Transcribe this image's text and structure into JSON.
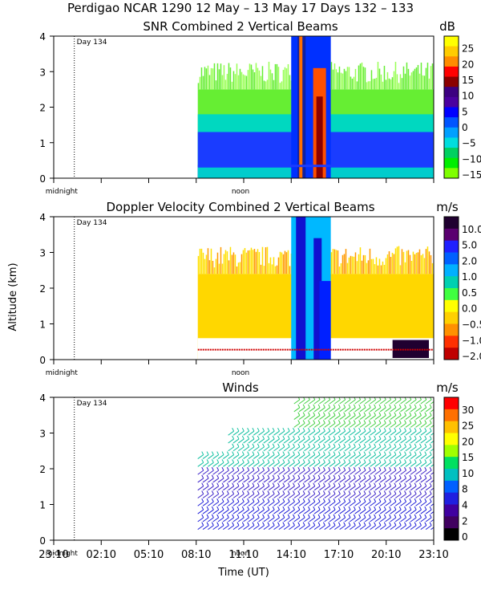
{
  "chart_data": {
    "type": "heatmap",
    "title": "Perdigao NCAR 1290  12 May – 13 May 17 Days 132 – 133",
    "xlabel": "Time (UT)",
    "ylabel": "Altitude (km)",
    "xlim_hours": [
      0,
      24
    ],
    "ylim_km": [
      0,
      4
    ],
    "x_ticks": [
      "23:10",
      "02:10",
      "05:10",
      "08:10",
      "11:10",
      "14:10",
      "17:10",
      "20:10",
      "23:10"
    ],
    "y_ticks": [
      "0",
      "1",
      "2",
      "3",
      "4"
    ],
    "day_marker": {
      "label": "Day 134",
      "hour": 1.3
    },
    "time_marks": {
      "midnight": "midnight",
      "noon": "noon"
    },
    "data_start_hour": 9.1,
    "panels": [
      {
        "name": "snr",
        "title": "SNR Combined 2 Vertical Beams",
        "unit": "dB",
        "colorbar_labels": [
          "25",
          "20",
          "15",
          "10",
          "5",
          "0",
          "−5",
          "−10",
          "−15"
        ],
        "colorbar_colors": [
          "#ffff00",
          "#ffcc00",
          "#ff8c00",
          "#ff0000",
          "#8b0000",
          "#3c0080",
          "#4b00a0",
          "#0000ff",
          "#0055ff",
          "#00a0ff",
          "#00dddd",
          "#00d060",
          "#00ee00",
          "#7fff00"
        ],
        "layers": [
          {
            "top_km": 0.3,
            "color": "#00cccc"
          },
          {
            "top_km": 1.3,
            "color": "#1a3cff"
          },
          {
            "top_km": 1.8,
            "color": "#00d8c0"
          },
          {
            "top_km": 2.5,
            "color": "#66ee33"
          }
        ],
        "core": {
          "start_hour": 15.0,
          "end_hour": 17.5,
          "top_km": 4.0
        }
      },
      {
        "name": "velocity",
        "title": "Doppler Velocity Combined 2 Vertical Beams",
        "unit": "m/s",
        "colorbar_labels": [
          "10.0",
          "5.0",
          "2.0",
          "1.0",
          "0.5",
          "0.0",
          "−0.5",
          "−1.0",
          "−2.0"
        ],
        "colorbar_colors": [
          "#200030",
          "#5a0070",
          "#2020ff",
          "#0060ff",
          "#00b0ff",
          "#00d0b0",
          "#40ff40",
          "#ffff00",
          "#ffd000",
          "#ff9000",
          "#ff3000",
          "#c00000"
        ],
        "layers": [
          {
            "top_km": 0.6,
            "color": "#ffffff"
          },
          {
            "top_km": 2.4,
            "color": "#ffd700"
          }
        ],
        "core": {
          "start_hour": 15.0,
          "end_hour": 17.5,
          "top_km": 4.0
        }
      },
      {
        "name": "winds",
        "title": "Winds",
        "unit": "m/s",
        "colorbar_labels": [
          "30",
          "25",
          "20",
          "15",
          "10",
          "8",
          "4",
          "2",
          "0"
        ],
        "colorbar_colors": [
          "#ff0000",
          "#ff7000",
          "#ffc000",
          "#ffff00",
          "#a0ff00",
          "#00e060",
          "#00c0c0",
          "#0060ff",
          "#2020e0",
          "#4000a0",
          "#400060",
          "#000000"
        ],
        "speed_bands": [
          {
            "top_km": 1.0,
            "color": "#1c1cd8"
          },
          {
            "top_km": 2.0,
            "color": "#3a20c8"
          },
          {
            "top_km": 3.0,
            "color": "#10c0a0"
          },
          {
            "top_km": 4.0,
            "color": "#40d040"
          }
        ]
      }
    ]
  }
}
